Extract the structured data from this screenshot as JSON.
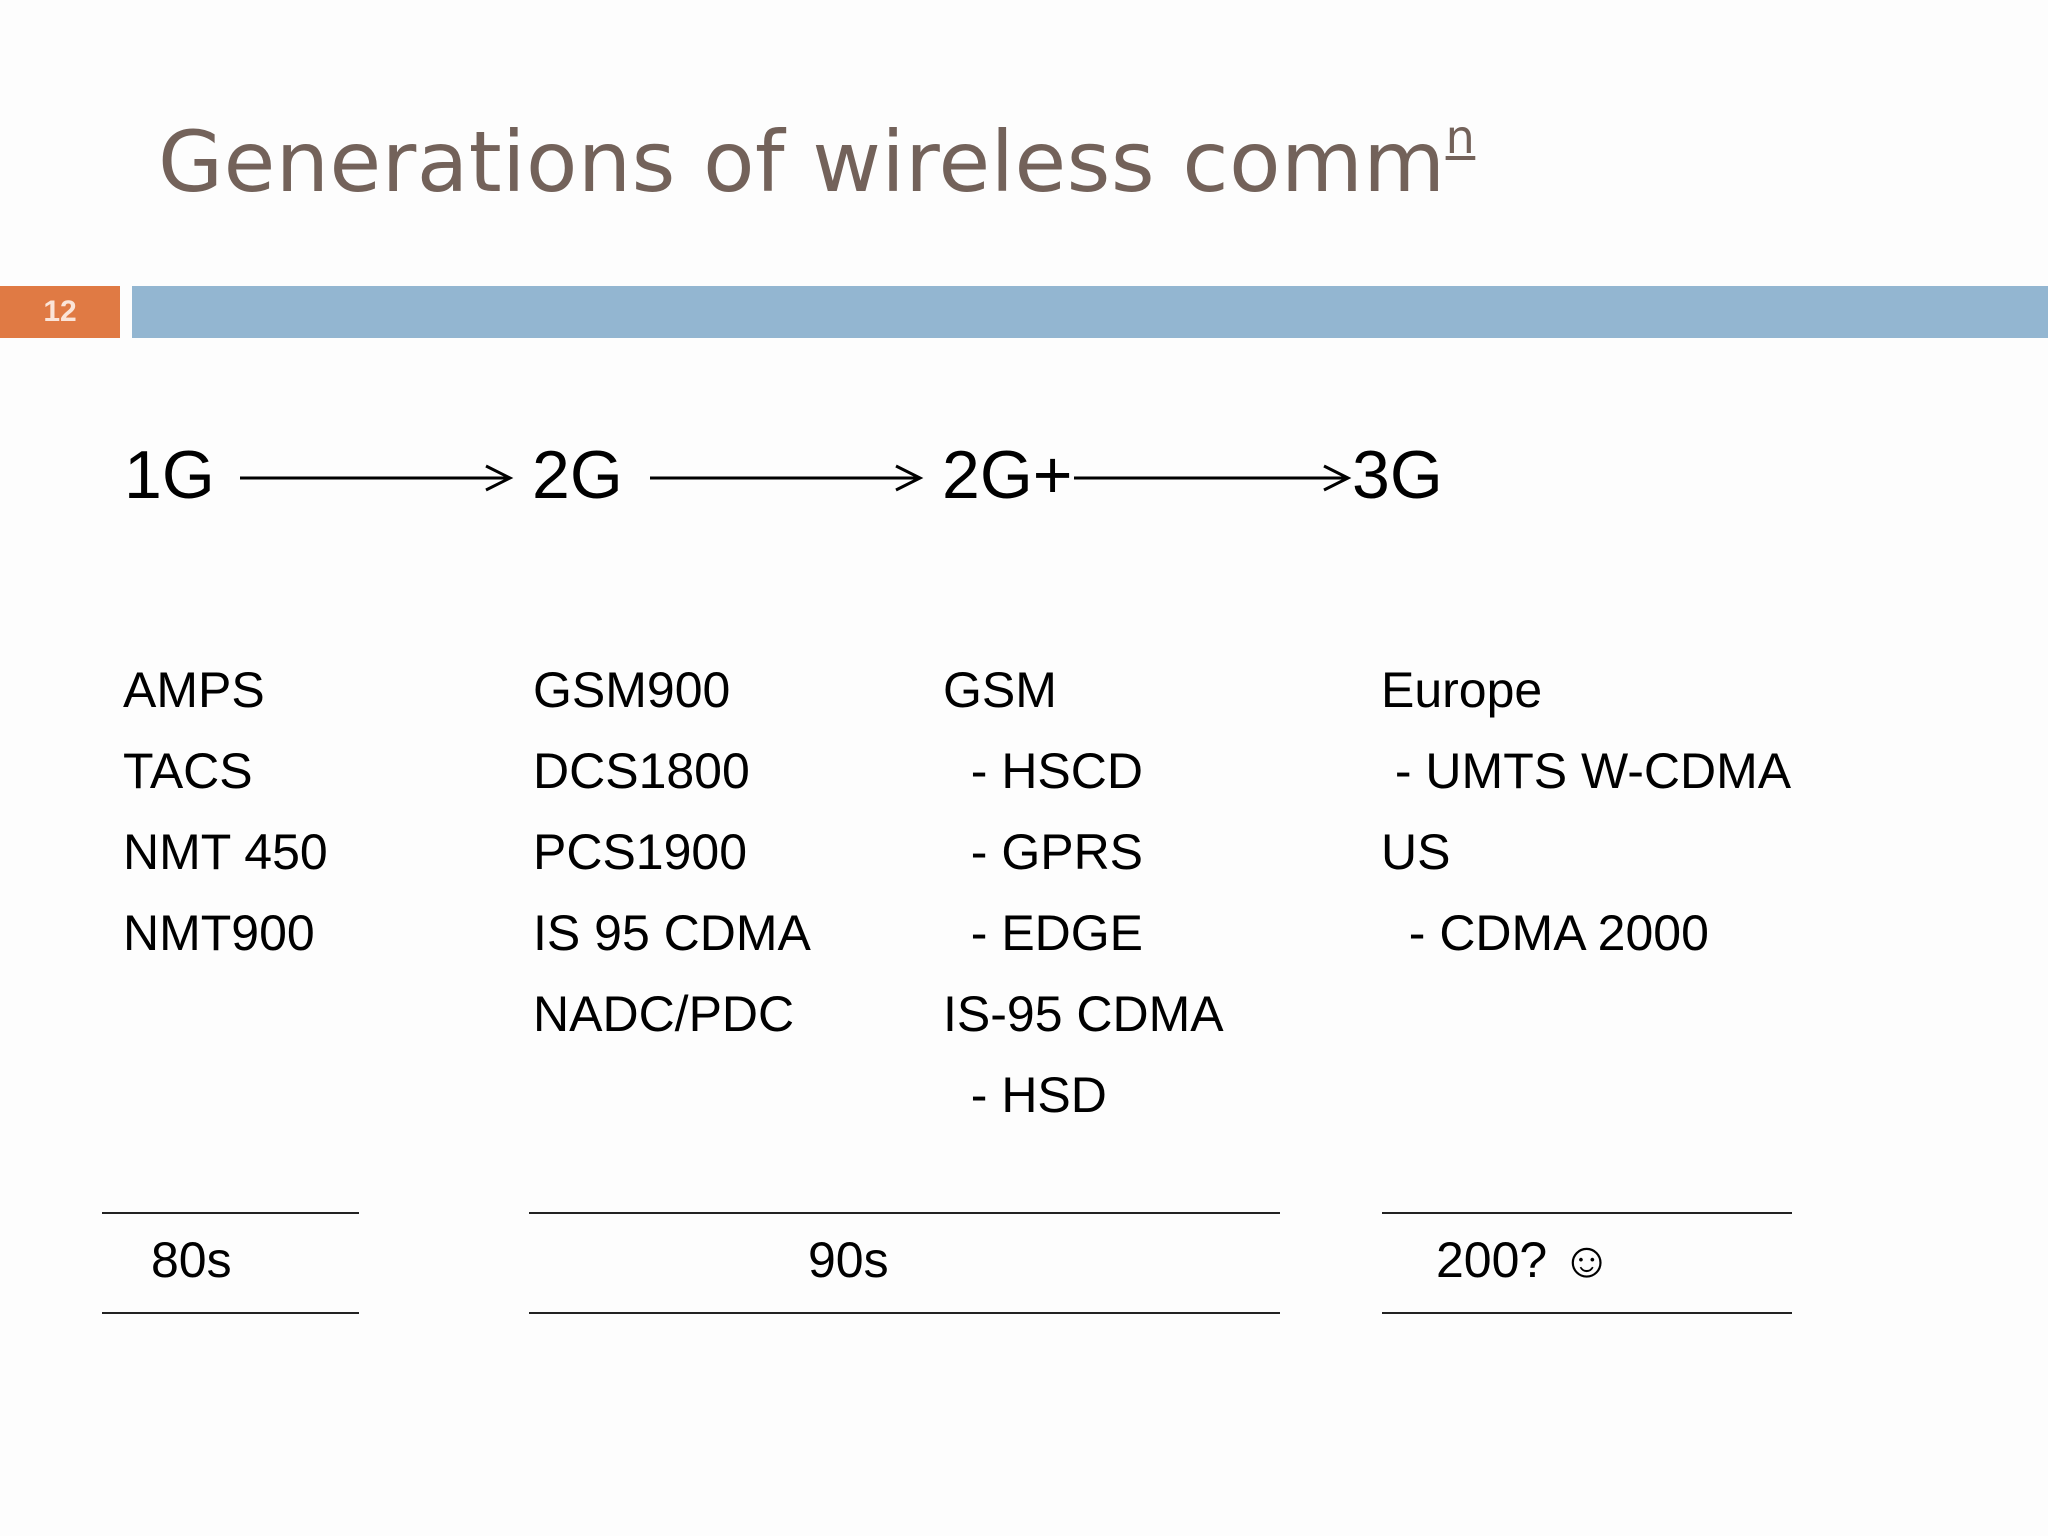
{
  "slide": {
    "title": "Generations of  wireless comm",
    "title_superscript": "n",
    "slide_number": "12",
    "colors": {
      "title": "#73625a",
      "number_box": "#e07a44",
      "accent_bar": "#93b6d1"
    }
  },
  "generations": [
    "1G",
    "2G",
    "2G+",
    "3G"
  ],
  "columns": [
    {
      "items": [
        "AMPS",
        "TACS",
        "NMT 450",
        "NMT900"
      ]
    },
    {
      "items": [
        "GSM900",
        "DCS1800",
        "PCS1900",
        "IS 95 CDMA",
        "NADC/PDC"
      ]
    },
    {
      "items": [
        "GSM",
        "  - HSCD",
        "  - GPRS",
        "  - EDGE",
        "IS-95 CDMA",
        "  - HSD"
      ]
    },
    {
      "items": [
        "Europe",
        " - UMTS W-CDMA",
        "US",
        "  - CDMA 2000"
      ]
    }
  ],
  "periods": [
    "80s",
    "90s",
    "200? ☺"
  ]
}
